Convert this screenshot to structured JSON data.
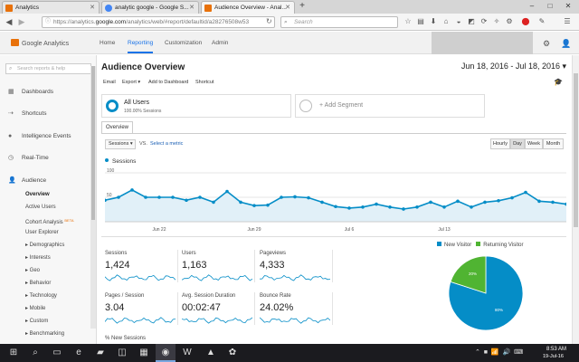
{
  "browser": {
    "tabs": [
      {
        "label": "Analytics",
        "favicon_color": "#e8710a"
      },
      {
        "label": "analytic google - Google S...",
        "favicon_color": "#4285f4"
      },
      {
        "label": "Audience Overview - Anal...",
        "favicon_color": "#e8710a"
      }
    ],
    "url_prefix": "https://analytics.",
    "url_domain": "google.com",
    "url_path": "/analytics/web/#report/defaultid/a28276508w53",
    "search_placeholder": "Search"
  },
  "ga": {
    "logo_text": "Google Analytics",
    "nav": [
      "Home",
      "Reporting",
      "Customization",
      "Admin"
    ],
    "active_nav": "Reporting"
  },
  "sidebar": {
    "search_placeholder": "Search reports & help",
    "items": [
      {
        "label": "Dashboards",
        "icon": "grid-icon"
      },
      {
        "label": "Shortcuts",
        "icon": "arrow-icon"
      },
      {
        "label": "Intelligence Events",
        "icon": "bulb-icon"
      },
      {
        "label": "Real-Time",
        "icon": "clock-icon"
      },
      {
        "label": "Audience",
        "icon": "person-icon"
      }
    ],
    "audience_sub": [
      "Overview",
      "Active Users",
      "Cohort Analysis",
      "User Explorer",
      "▸ Demographics",
      "▸ Interests",
      "▸ Geo",
      "▸ Behavior",
      "▸ Technology",
      "▸ Mobile",
      "▸ Custom",
      "▸ Benchmarking"
    ],
    "beta_label": "BETA"
  },
  "main": {
    "title": "Audience Overview",
    "date_range": "Jun 18, 2016 - Jul 18, 2016 ▾",
    "actions": [
      "Email",
      "Export ▾",
      "Add to Dashboard",
      "Shortcut"
    ],
    "segment_title": "All Users",
    "segment_subtitle": "100.00% Sessions",
    "add_segment": "+ Add Segment",
    "tab": "Overview",
    "metric_select": "Sessions ▾",
    "vs": "VS.",
    "select_metric": "Select a metric",
    "granularity": [
      "Hourly",
      "Day",
      "Week",
      "Month"
    ],
    "active_granularity": "Day"
  },
  "chart_data": {
    "type": "area",
    "series": [
      {
        "name": "Sessions",
        "values": [
          44,
          50,
          65,
          50,
          50,
          50,
          44,
          50,
          40,
          62,
          40,
          33,
          34,
          50,
          51,
          49,
          40,
          31,
          28,
          30,
          36,
          30,
          26,
          30,
          40,
          30,
          42,
          30,
          40,
          43,
          49,
          60,
          42,
          40,
          36
        ]
      }
    ],
    "x_ticks": [
      "Jun 22",
      "Jun 29",
      "Jul 6",
      "Jul 13"
    ],
    "y_ticks": [
      "100",
      "50"
    ],
    "ylim": [
      0,
      100
    ],
    "color": "#058dc7",
    "fill": "#e1f0f8"
  },
  "metrics": [
    {
      "name": "Sessions",
      "value": "1,424"
    },
    {
      "name": "Users",
      "value": "1,163"
    },
    {
      "name": "Pageviews",
      "value": "4,333"
    },
    {
      "name": "Pages / Session",
      "value": "3.04"
    },
    {
      "name": "Avg. Session Duration",
      "value": "00:02:47"
    },
    {
      "name": "Bounce Rate",
      "value": "24.02%"
    },
    {
      "name": "% New Sessions",
      "value": ""
    }
  ],
  "pie_data": {
    "type": "pie",
    "legend": [
      "New Visitor",
      "Returning Visitor"
    ],
    "values": [
      80,
      20
    ],
    "labels": [
      "80%",
      "20%"
    ],
    "colors": [
      "#058dc7",
      "#50b432"
    ]
  },
  "taskbar": {
    "time": "8:53 AM",
    "date": "19-Jul-16"
  }
}
